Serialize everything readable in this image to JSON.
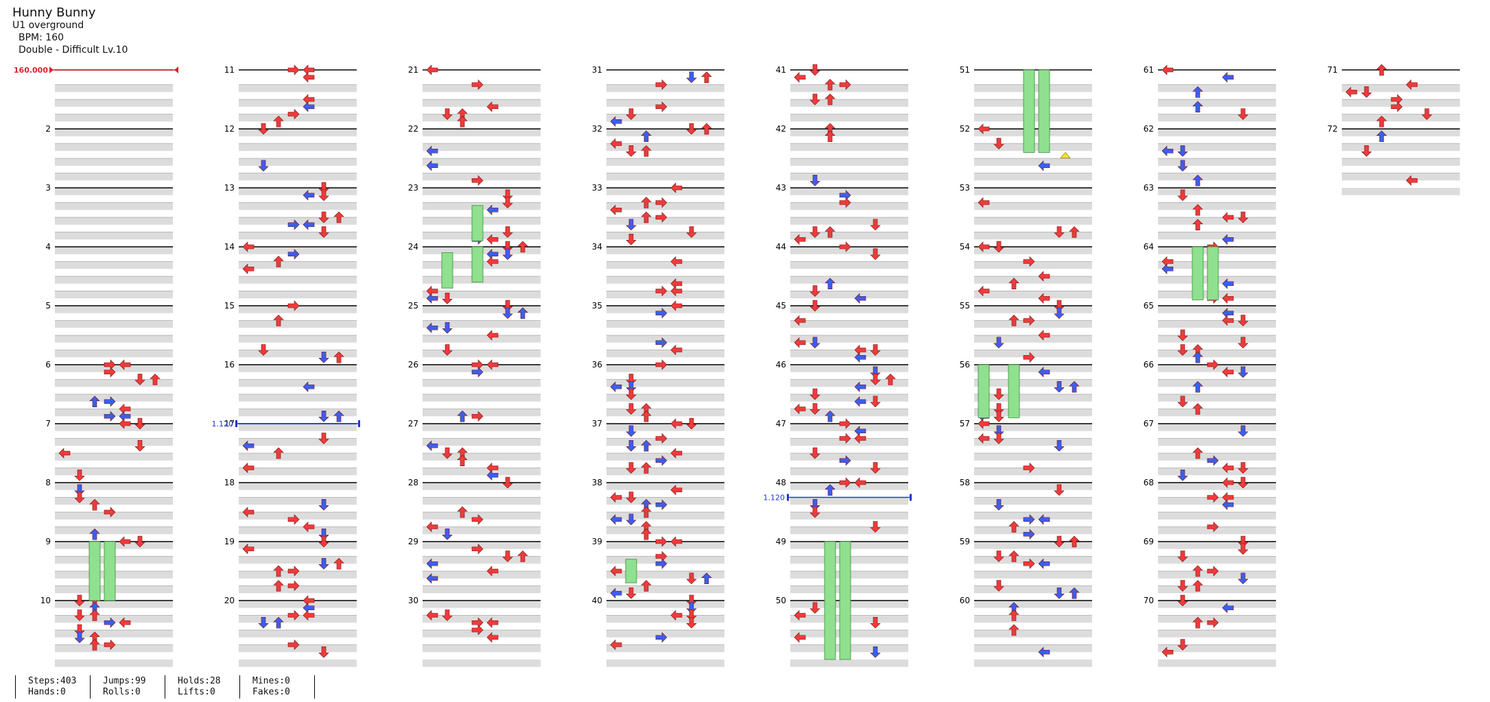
{
  "song": {
    "title": "Hunny Bunny",
    "artist": "U1 overground",
    "bpm_line": "BPM: 160",
    "difficulty_line": "Double - Difficult Lv.10"
  },
  "measure_labels": [
    "2",
    "3",
    "4",
    "5",
    "6",
    "7",
    "8",
    "9",
    "10",
    "11",
    "12",
    "13",
    "14",
    "15",
    "16",
    "17",
    "18",
    "19",
    "20",
    "21",
    "22",
    "23",
    "24",
    "25",
    "26",
    "27",
    "28",
    "29",
    "30",
    "31",
    "32",
    "33",
    "34",
    "35",
    "36",
    "37",
    "38",
    "39",
    "40",
    "41",
    "42",
    "43",
    "44",
    "45",
    "46",
    "47",
    "48",
    "49",
    "50",
    "51",
    "52",
    "53",
    "54",
    "55",
    "56",
    "57",
    "58",
    "59",
    "60",
    "61",
    "62",
    "63",
    "64",
    "65",
    "66",
    "67",
    "68",
    "69",
    "70",
    "71",
    "72"
  ],
  "bpm_change": {
    "label": "160.000",
    "measure": 1
  },
  "speed_changes": [
    {
      "label": "1.120",
      "measure": 17
    },
    {
      "label": "1.120",
      "measure": 48.25
    }
  ],
  "stats": [
    {
      "a": "Steps:403",
      "b": "Hands:0"
    },
    {
      "a": "Jumps:99",
      "b": "Rolls:0"
    },
    {
      "a": "Holds:28",
      "b": "Lifts:0"
    },
    {
      "a": "Mines:0",
      "b": "Fakes:0"
    }
  ],
  "colors": {
    "red_arrow": "#ee3b3b",
    "blue_arrow": "#3a5ff0",
    "hold_green": "#8fe08f",
    "mine_yellow": "#f5e23a",
    "row_shade": "#dcdcdc",
    "bpm_marker": "#e0202a",
    "speed_marker": "#1f35d8"
  }
}
